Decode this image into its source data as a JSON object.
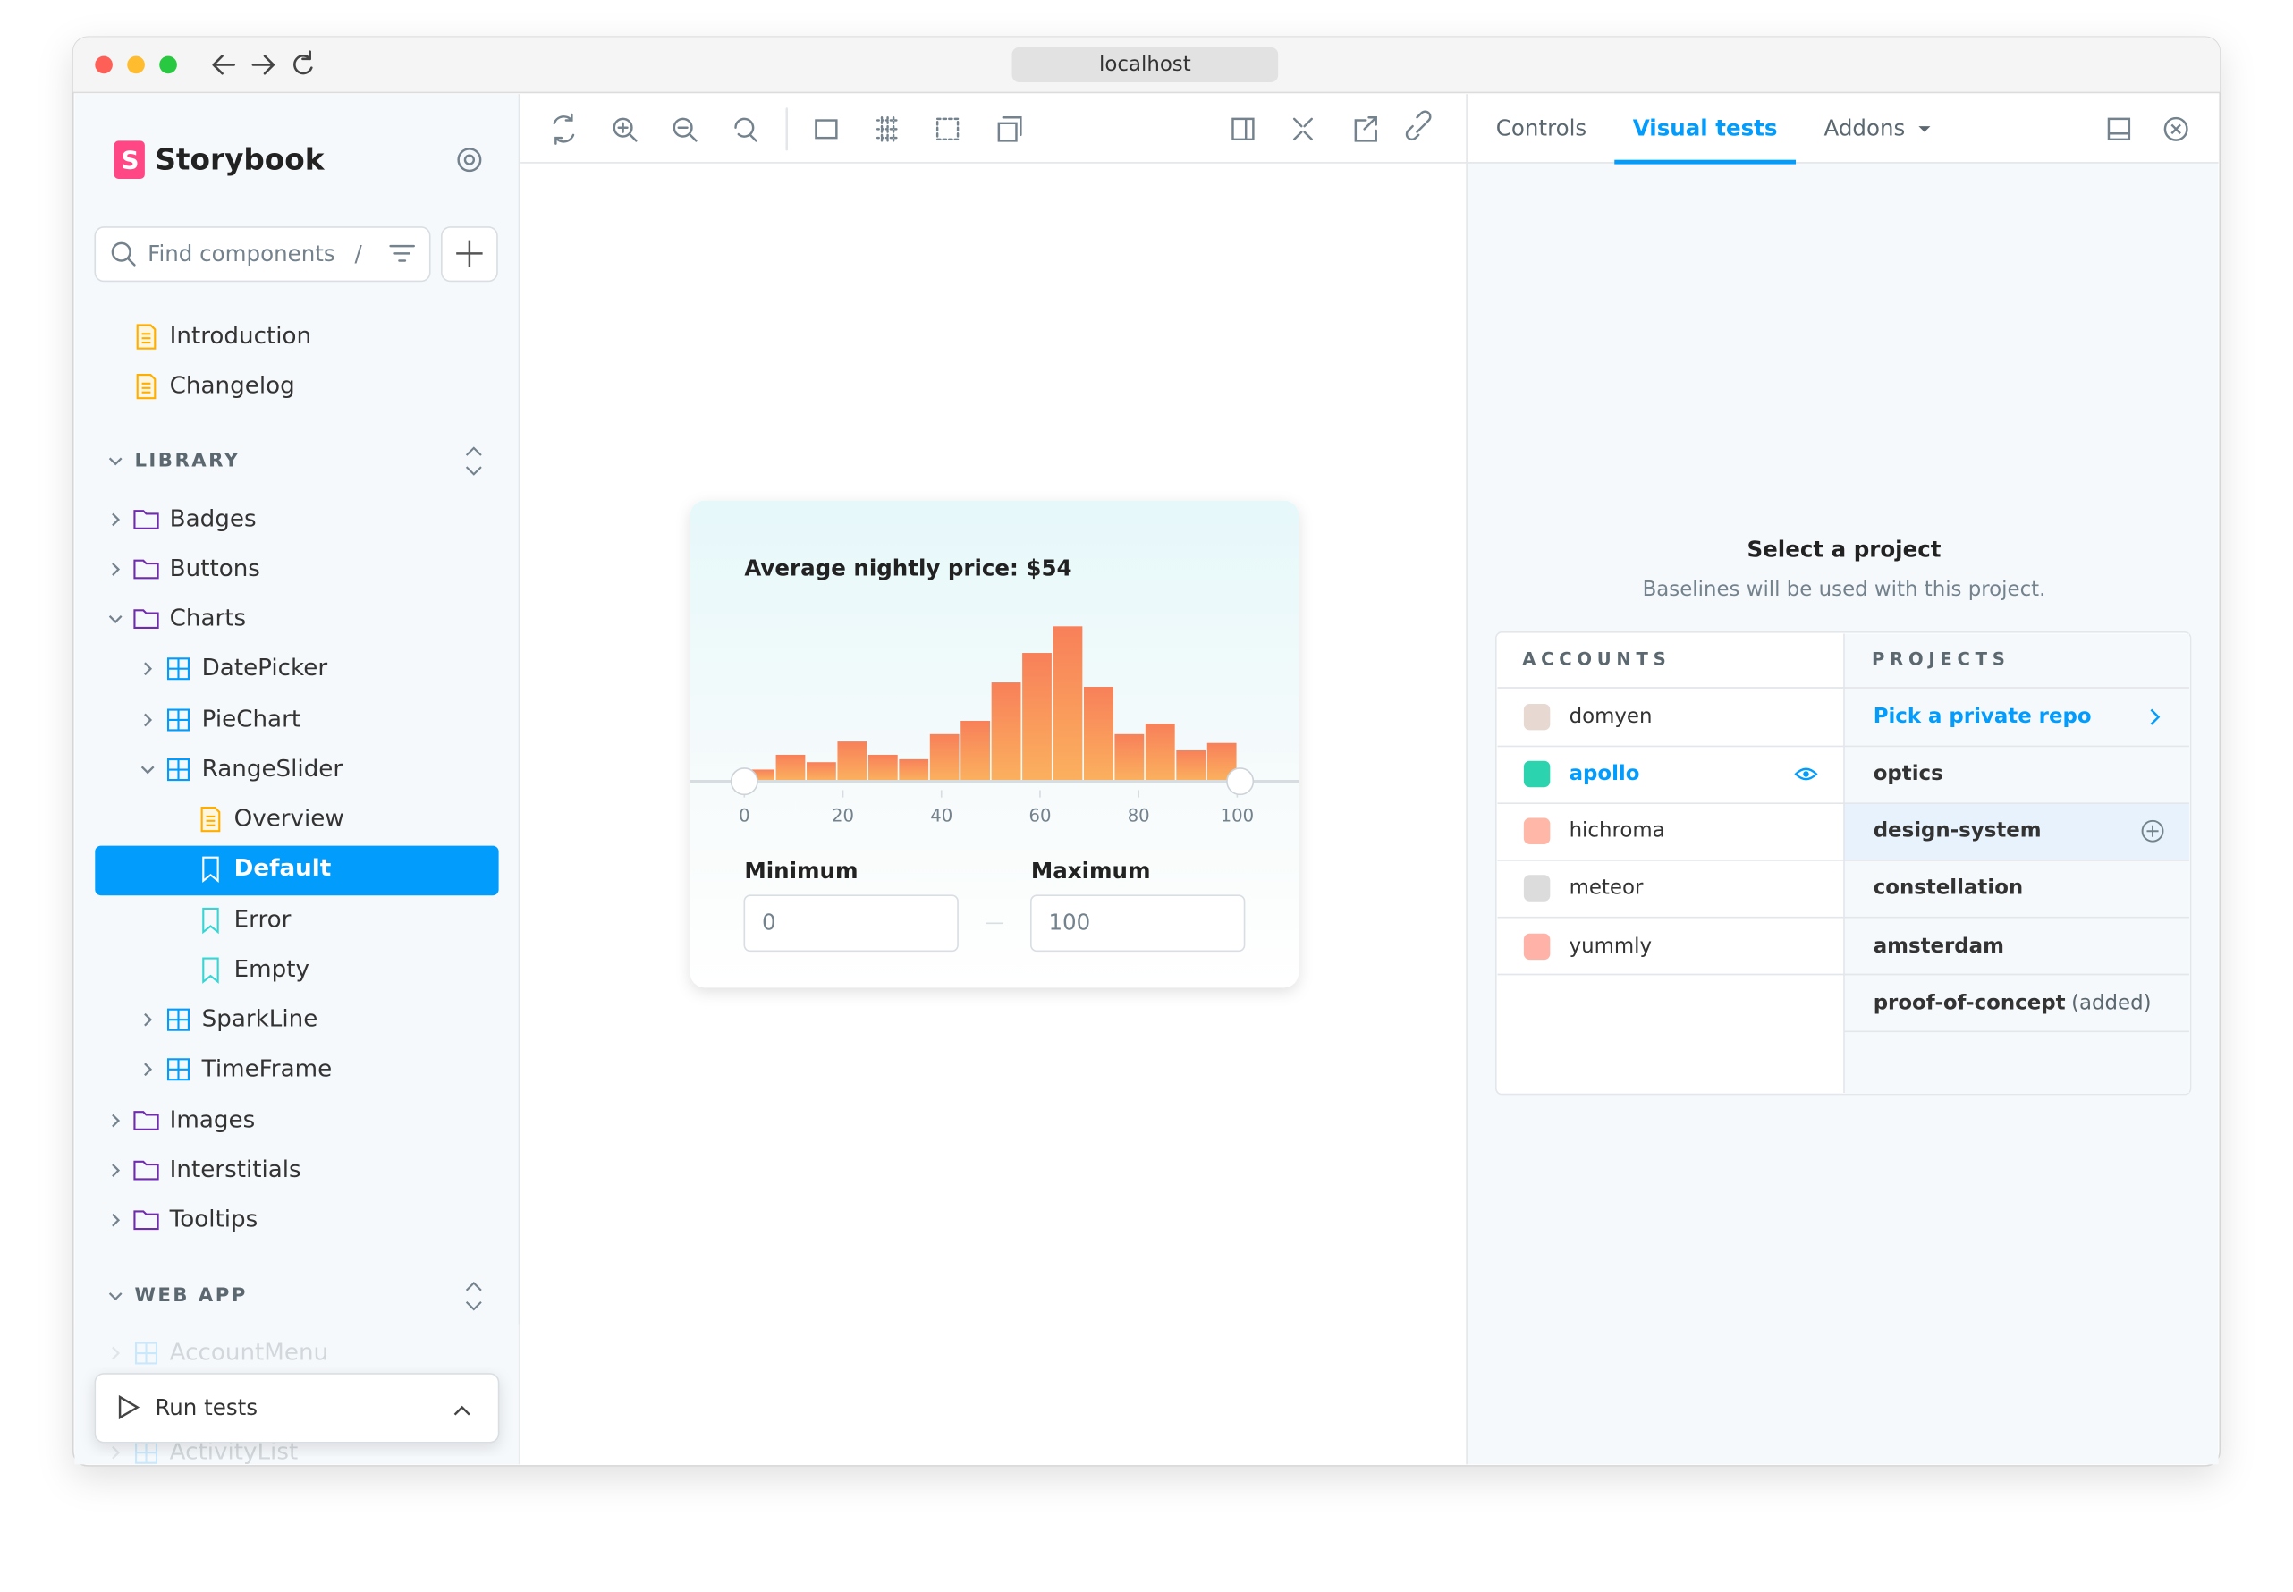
{
  "browser": {
    "url": "localhost"
  },
  "sidebar": {
    "brand": "Storybook",
    "search_placeholder": "Find components",
    "search_shortcut": "/",
    "docs": [
      "Introduction",
      "Changelog"
    ],
    "sections": [
      {
        "title": "LIBRARY",
        "items": [
          "Badges",
          "Buttons",
          "Charts",
          "DatePicker",
          "PieChart",
          "RangeSlider",
          "Overview",
          "Default",
          "Error",
          "Empty",
          "SparkLine",
          "TimeFrame",
          "Images",
          "Interstitials",
          "Tooltips"
        ]
      },
      {
        "title": "WEB APP",
        "items": [
          "AccountMenu",
          "ActivityList"
        ]
      }
    ],
    "run_tests": "Run tests"
  },
  "tabs": [
    "Controls",
    "Visual tests",
    "Addons"
  ],
  "preview": {
    "title": "Average nightly price: $54",
    "histogram": {
      "bins": [
        0,
        6.25,
        12.5,
        18.75,
        25,
        31.25,
        37.5,
        43.75,
        50,
        56.25,
        62.5,
        68.75,
        75,
        81.25,
        87.5,
        93.75,
        100
      ],
      "counts": [
        7,
        17,
        12,
        26,
        17,
        14,
        31,
        40,
        66,
        86,
        104,
        63,
        31,
        38,
        20,
        25
      ],
      "xlim": [
        0,
        100
      ],
      "xticks": [
        0,
        20,
        40,
        60,
        80,
        100
      ]
    },
    "min_label": "Minimum",
    "max_label": "Maximum",
    "min_value": 0,
    "max_value": 100
  },
  "panel": {
    "heading": "Select a project",
    "subheading": "Baselines will be used with this project.",
    "accounts_header": "ACCOUNTS",
    "projects_header": "PROJECTS",
    "accounts": [
      "domyen",
      "apollo",
      "hichroma",
      "meteor",
      "yummly"
    ],
    "projects": [
      "Pick a private repo",
      "optics",
      "design-system",
      "constellation",
      "amsterdam",
      "proof-of-concept"
    ],
    "added_note": "(added)"
  }
}
